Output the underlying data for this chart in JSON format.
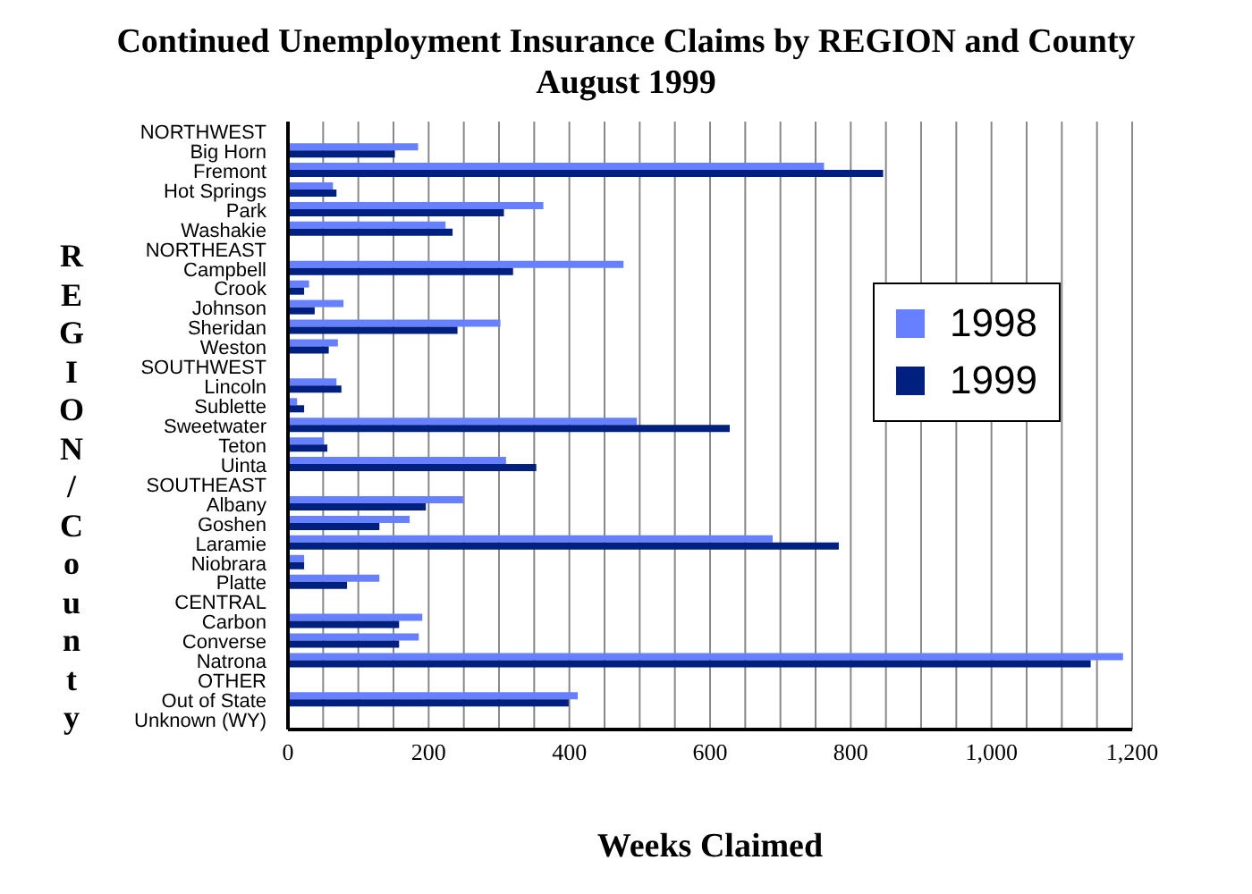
{
  "chart_data": {
    "type": "bar",
    "orientation": "horizontal",
    "title": "Continued Unemployment Insurance Claims by REGION and County",
    "subtitle": "August 1999",
    "xlabel": "Weeks Claimed",
    "ylabel": "REGION/County",
    "categories": [
      "NORTHWEST",
      "Big Horn",
      "Fremont",
      "Hot Springs",
      "Park",
      "Washakie",
      "NORTHEAST",
      "Campbell",
      "Crook",
      "Johnson",
      "Sheridan",
      "Weston",
      "SOUTHWEST",
      "Lincoln",
      "Sublette",
      "Sweetwater",
      "Teton",
      "Uinta",
      "SOUTHEAST",
      "Albany",
      "Goshen",
      "Laramie",
      "Niobrara",
      "Platte",
      "CENTRAL",
      "Carbon",
      "Converse",
      "Natrona",
      "OTHER",
      "Out of State",
      "Unknown (WY)"
    ],
    "series": [
      {
        "name": "1998",
        "color": "#6680ff",
        "values": [
          null,
          185,
          762,
          64,
          363,
          224,
          null,
          477,
          30,
          79,
          302,
          71,
          null,
          69,
          13,
          496,
          51,
          310,
          null,
          249,
          173,
          689,
          23,
          130,
          null,
          191,
          186,
          1187,
          null,
          412,
          null
        ]
      },
      {
        "name": "1999",
        "color": "#00207f",
        "values": [
          null,
          152,
          846,
          69,
          307,
          234,
          null,
          320,
          23,
          38,
          241,
          58,
          null,
          76,
          23,
          628,
          56,
          353,
          null,
          196,
          130,
          783,
          23,
          84,
          null,
          158,
          158,
          1141,
          null,
          399,
          null
        ]
      }
    ],
    "xlim": [
      0,
      1200
    ],
    "xticks": [
      0,
      {
        "value": 50,
        "label": null
      },
      {
        "value": 100,
        "label": null
      },
      {
        "value": 150,
        "label": null
      },
      200,
      {
        "value": 250,
        "label": null
      },
      {
        "value": 300,
        "label": null
      },
      {
        "value": 350,
        "label": null
      },
      400,
      {
        "value": 450,
        "label": null
      },
      {
        "value": 500,
        "label": null
      },
      {
        "value": 550,
        "label": null
      },
      600,
      {
        "value": 650,
        "label": null
      },
      {
        "value": 700,
        "label": null
      },
      {
        "value": 750,
        "label": null
      },
      800,
      {
        "value": 850,
        "label": null
      },
      {
        "value": 900,
        "label": null
      },
      {
        "value": 950,
        "label": null
      },
      {
        "value": 1000,
        "label": "1,000"
      },
      {
        "value": 1050,
        "label": null
      },
      {
        "value": 1100,
        "label": null
      },
      {
        "value": 1150,
        "label": null
      },
      {
        "value": 1200,
        "label": "1,200"
      }
    ],
    "grid": "x",
    "legend": "right"
  }
}
